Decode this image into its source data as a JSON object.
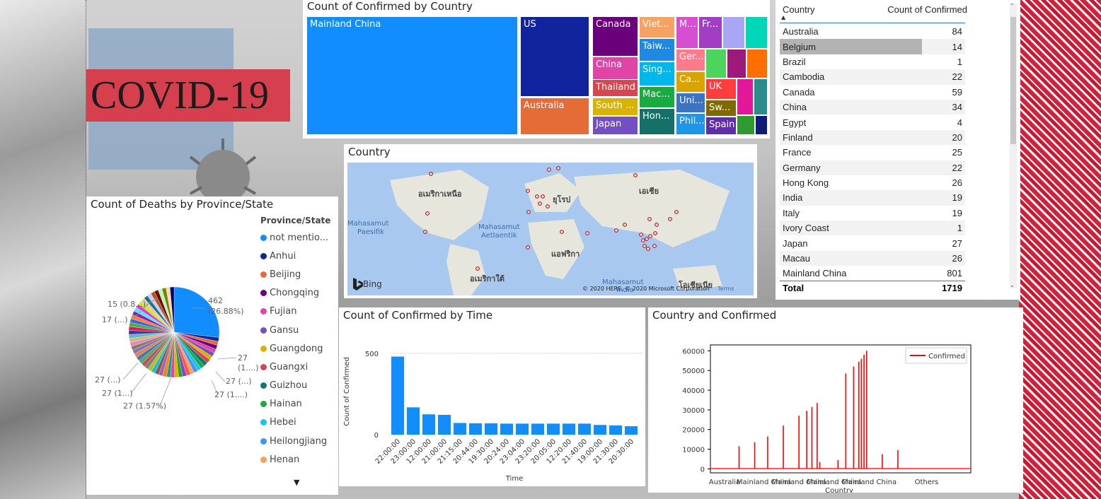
{
  "banner": {
    "title": "COVID-19"
  },
  "treemap": {
    "title": "Count of Confirmed by Country",
    "cells": [
      {
        "label": "Mainland China",
        "color": "#118dff"
      },
      {
        "label": "US",
        "color": "#12239e"
      },
      {
        "label": "Australia",
        "color": "#e66c37"
      },
      {
        "label": "Canada",
        "color": "#6b007b"
      },
      {
        "label": "China",
        "color": "#e044a7"
      },
      {
        "label": "Thailand",
        "color": "#d64550"
      },
      {
        "label": "South ...",
        "color": "#d9b300"
      },
      {
        "label": "Japan",
        "color": "#744ec2"
      },
      {
        "label": "Viet...",
        "color": "#f5a262"
      },
      {
        "label": "Taiw...",
        "color": "#1e88e5"
      },
      {
        "label": "Sing...",
        "color": "#00b6ea"
      },
      {
        "label": "Mac...",
        "color": "#1aab40"
      },
      {
        "label": "Hon...",
        "color": "#15706a"
      },
      {
        "label": "M...",
        "color": "#d64fd1"
      },
      {
        "label": "Fr...",
        "color": "#a13ec3"
      },
      {
        "label": "",
        "color": "#a9a6f6"
      },
      {
        "label": "",
        "color": "#00d6b9"
      },
      {
        "label": "Ger...",
        "color": "#ff7a8b"
      },
      {
        "label": "Ca...",
        "color": "#d9a300"
      },
      {
        "label": "Uni...",
        "color": "#3c74c4"
      },
      {
        "label": "Phil...",
        "color": "#1e95e6"
      },
      {
        "label": "",
        "color": "#4cd45d"
      },
      {
        "label": "",
        "color": "#9e1a7a"
      },
      {
        "label": "",
        "color": "#ff6f00"
      },
      {
        "label": "UK",
        "color": "#ff3d3d"
      },
      {
        "label": "Sw...",
        "color": "#7f6a00"
      },
      {
        "label": "Spain",
        "color": "#5e2ea8"
      },
      {
        "label": "",
        "color": "#e1189a"
      },
      {
        "label": "",
        "color": "#2b8c8c"
      },
      {
        "label": "",
        "color": "#2e9b2e"
      },
      {
        "label": "",
        "color": "#0c1e7a"
      }
    ]
  },
  "map": {
    "title": "Country",
    "labels": {
      "north_america": "อเมริกาเหนือ",
      "europe": "ยุโรป",
      "asia": "เอเชีย",
      "pacific": "Mahasamut\nPaesifik",
      "atlantic": "Mahasamut\nAetlaentik",
      "africa": "แอฟริกา",
      "south_america": "อเมริกาใต้",
      "indian": "Mahasamut\nIndia",
      "oceania": "โอเชียเนีย"
    },
    "brand": "Bing",
    "copyright": "© 2020 HERE, © 2020 Microsoft Corporation",
    "terms": "Terms"
  },
  "table": {
    "headers": [
      "Country",
      "Count of Confirmed"
    ],
    "rows": [
      [
        "Australia",
        "84"
      ],
      [
        "Belgium",
        "14"
      ],
      [
        "Brazil",
        "1"
      ],
      [
        "Cambodia",
        "22"
      ],
      [
        "Canada",
        "59"
      ],
      [
        "China",
        "34"
      ],
      [
        "Egypt",
        "4"
      ],
      [
        "Finland",
        "20"
      ],
      [
        "France",
        "25"
      ],
      [
        "Germany",
        "22"
      ],
      [
        "Hong Kong",
        "26"
      ],
      [
        "India",
        "19"
      ],
      [
        "Italy",
        "19"
      ],
      [
        "Ivory Coast",
        "1"
      ],
      [
        "Japan",
        "27"
      ],
      [
        "Macau",
        "26"
      ],
      [
        "Mainland China",
        "801"
      ]
    ],
    "total_label": "Total",
    "total_value": "1719"
  },
  "pie": {
    "title": "Count of Deaths by Province/State",
    "legend_title": "Province/State",
    "legend": [
      {
        "label": "not mentio...",
        "color": "#118dff"
      },
      {
        "label": "Anhui",
        "color": "#12239e"
      },
      {
        "label": "Beijing",
        "color": "#e66c37"
      },
      {
        "label": "Chongqing",
        "color": "#6b007b"
      },
      {
        "label": "Fujian",
        "color": "#e044a7"
      },
      {
        "label": "Gansu",
        "color": "#744ec2"
      },
      {
        "label": "Guangdong",
        "color": "#d9b300"
      },
      {
        "label": "Guangxi",
        "color": "#d64550"
      },
      {
        "label": "Guizhou",
        "color": "#197278"
      },
      {
        "label": "Hainan",
        "color": "#1aab40"
      },
      {
        "label": "Hebei",
        "color": "#15c6f4"
      },
      {
        "label": "Heilongjiang",
        "color": "#4092ff"
      },
      {
        "label": "Henan",
        "color": "#ff9f58"
      }
    ],
    "data_labels": [
      "462",
      "(26.88%)",
      "27",
      "(1....)",
      "27 (...)",
      "27 (1....)",
      "27 (1.57%)",
      "27 (1...)",
      "27 (...)",
      "17 (...)",
      "15 (0.8...)"
    ],
    "main_share": 0.2688
  },
  "chart_data": [
    {
      "type": "bar",
      "title": "Count of Confirmed by Time",
      "xlabel": "Time",
      "ylabel": "Count of Confirmed",
      "categories": [
        "22:00:00",
        "23:00:00",
        "12:00:00",
        "21:00:00",
        "21:15:00",
        "20:44:00",
        "19:30:00",
        "20:24:00",
        "23:04:00",
        "23:20:00",
        "20:05:00",
        "12:20:00",
        "21:40:00",
        "19:00:00",
        "21:30:00",
        "20:30:00"
      ],
      "values": [
        480,
        168,
        125,
        122,
        72,
        70,
        70,
        68,
        68,
        68,
        68,
        68,
        68,
        60,
        57,
        52
      ],
      "ylim": [
        0,
        530
      ],
      "yticks": [
        "500",
        "0"
      ],
      "grid": true
    },
    {
      "type": "line",
      "title": "Country and Confirmed",
      "series": [
        {
          "name": "Confirmed",
          "color": "#ff0000"
        }
      ],
      "yticks": [
        "0",
        "10000",
        "20000",
        "30000",
        "40000",
        "50000",
        "60000"
      ],
      "ylim": [
        -2000,
        63000
      ],
      "xticks": [
        "Australia",
        "Mainland China",
        "Mainland China",
        "Mainland China",
        "Mainland China",
        "Others"
      ],
      "xlabel": "Country",
      "spikes": [
        {
          "x": 0.11,
          "y": 11500
        },
        {
          "x": 0.17,
          "y": 13500
        },
        {
          "x": 0.22,
          "y": 16500
        },
        {
          "x": 0.28,
          "y": 22000
        },
        {
          "x": 0.34,
          "y": 27000
        },
        {
          "x": 0.37,
          "y": 29500
        },
        {
          "x": 0.39,
          "y": 31500
        },
        {
          "x": 0.41,
          "y": 33500
        },
        {
          "x": 0.42,
          "y": 3500
        },
        {
          "x": 0.49,
          "y": 4500
        },
        {
          "x": 0.52,
          "y": 48500
        },
        {
          "x": 0.55,
          "y": 52000
        },
        {
          "x": 0.57,
          "y": 54500
        },
        {
          "x": 0.58,
          "y": 56000
        },
        {
          "x": 0.59,
          "y": 58000
        },
        {
          "x": 0.6,
          "y": 60000
        },
        {
          "x": 0.66,
          "y": 7500
        },
        {
          "x": 0.72,
          "y": 9500
        }
      ],
      "legend": "top-right"
    }
  ]
}
